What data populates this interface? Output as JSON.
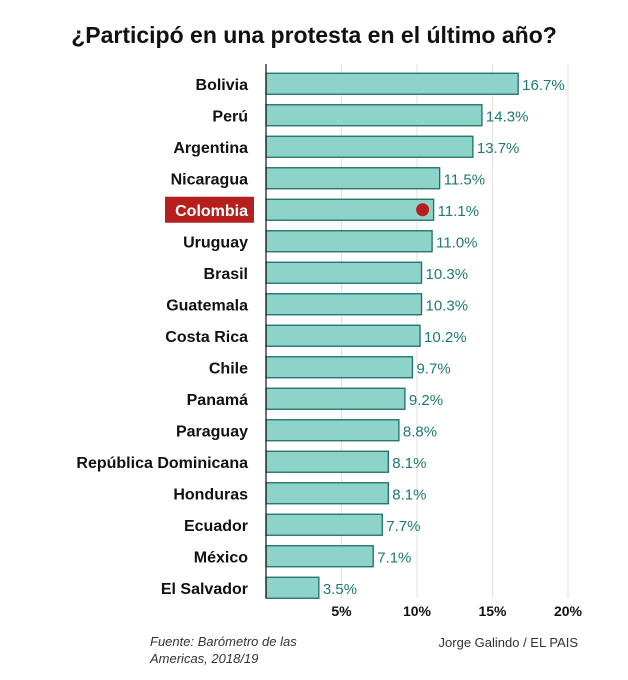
{
  "chart_data": {
    "type": "bar",
    "orientation": "horizontal",
    "title": "¿Participó en una protesta en el último año?",
    "categories": [
      "Bolivia",
      "Perú",
      "Argentina",
      "Nicaragua",
      "Colombia",
      "Uruguay",
      "Brasil",
      "Guatemala",
      "Costa Rica",
      "Chile",
      "Panamá",
      "Paraguay",
      "República Dominicana",
      "Honduras",
      "Ecuador",
      "México",
      "El Salvador"
    ],
    "values": [
      16.7,
      14.3,
      13.7,
      11.5,
      11.1,
      11.0,
      10.3,
      10.3,
      10.2,
      9.7,
      9.2,
      8.8,
      8.1,
      8.1,
      7.7,
      7.1,
      3.5
    ],
    "value_labels": [
      "16.7%",
      "14.3%",
      "13.7%",
      "11.5%",
      "11.1%",
      "11.0%",
      "10.3%",
      "10.3%",
      "10.2%",
      "9.7%",
      "9.2%",
      "8.8%",
      "8.1%",
      "8.1%",
      "7.7%",
      "7.1%",
      "3.5%"
    ],
    "highlight": "Colombia",
    "xlim": [
      0,
      20
    ],
    "xticks": [
      5,
      10,
      15,
      20
    ],
    "xtick_labels": [
      "5%",
      "10%",
      "15%",
      "20%"
    ],
    "xlabel": "",
    "ylabel": "",
    "grid": true,
    "colors": {
      "bar_fill": "#8dd3c9",
      "bar_stroke": "#1d6e66",
      "value_text": "#1d7a72",
      "highlight_bg": "#b5201e",
      "highlight_marker": "#b5201e"
    }
  },
  "source": "Fuente: Barómetro de las Americas, 2018/19",
  "credit": "Jorge Galindo / EL PAIS"
}
